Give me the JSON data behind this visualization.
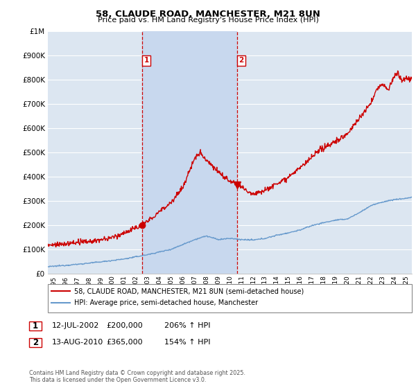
{
  "title": "58, CLAUDE ROAD, MANCHESTER, M21 8UN",
  "subtitle": "Price paid vs. HM Land Registry's House Price Index (HPI)",
  "ylabel_ticks": [
    "£0",
    "£100K",
    "£200K",
    "£300K",
    "£400K",
    "£500K",
    "£600K",
    "£700K",
    "£800K",
    "£900K",
    "£1M"
  ],
  "ytick_values": [
    0,
    100000,
    200000,
    300000,
    400000,
    500000,
    600000,
    700000,
    800000,
    900000,
    1000000
  ],
  "ylim": [
    0,
    1000000
  ],
  "xlim_start": 1994.5,
  "xlim_end": 2025.5,
  "xlabel_years": [
    "1995",
    "1996",
    "1997",
    "1998",
    "1999",
    "2000",
    "2001",
    "2002",
    "2003",
    "2004",
    "2005",
    "2006",
    "2007",
    "2008",
    "2009",
    "2010",
    "2011",
    "2012",
    "2013",
    "2014",
    "2015",
    "2016",
    "2017",
    "2018",
    "2019",
    "2020",
    "2021",
    "2022",
    "2023",
    "2024",
    "2025"
  ],
  "marker1_x": 2002.53,
  "marker1_y": 200000,
  "marker2_x": 2010.62,
  "marker2_y": 365000,
  "legend_line1": "58, CLAUDE ROAD, MANCHESTER, M21 8UN (semi-detached house)",
  "legend_line2": "HPI: Average price, semi-detached house, Manchester",
  "annotation1_label": "1",
  "annotation1_date": "12-JUL-2002",
  "annotation1_price": "£200,000",
  "annotation1_hpi": "206% ↑ HPI",
  "annotation2_label": "2",
  "annotation2_date": "13-AUG-2010",
  "annotation2_price": "£365,000",
  "annotation2_hpi": "154% ↑ HPI",
  "footer": "Contains HM Land Registry data © Crown copyright and database right 2025.\nThis data is licensed under the Open Government Licence v3.0.",
  "red_color": "#cc0000",
  "blue_color": "#6699cc",
  "bg_color": "#dce6f1",
  "shade_color": "#c8d8ee",
  "grid_color": "#ffffff",
  "vline_color": "#cc0000"
}
